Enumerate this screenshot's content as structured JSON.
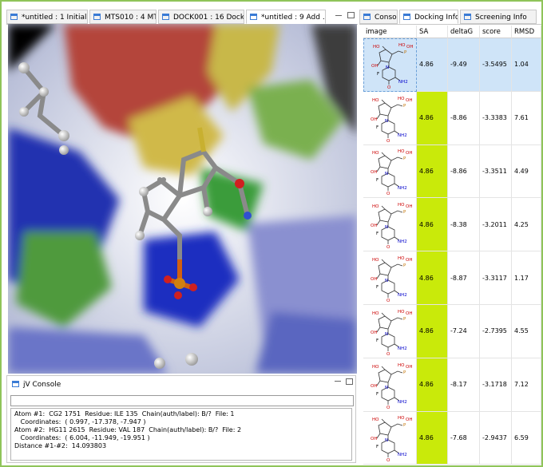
{
  "left_tabs": [
    "*untitled : 1 Initial ...",
    "MTS010 : 4 MTS",
    "DOCK001 : 16 Docking",
    "*untitled : 9 Add ..."
  ],
  "console": {
    "title": "jV Console",
    "lines": [
      "Atom #1:  CG2 1751  Residue: ILE 135  Chain(auth/label): B/?  File: 1",
      "   Coordinates:  ( 0.997, -17.378, -7.947 )",
      "Atom #2:  HG11 2615  Residue: VAL 187  Chain(auth/label): B/?  File: 2",
      "   Coordinates:  ( 6.004, -11.949, -19.951 )",
      "Distance #1-#2:  14.093803"
    ]
  },
  "right_tabs": [
    "Console",
    "Docking Info",
    "Screening Info"
  ],
  "table": {
    "columns": [
      "image",
      "SA",
      "deltaG",
      "score",
      "RMSD"
    ],
    "rows": [
      [
        4.86,
        -9.49,
        -3.5495,
        1.04
      ],
      [
        4.86,
        -8.86,
        -3.3383,
        7.61
      ],
      [
        4.86,
        -8.86,
        -3.3511,
        4.49
      ],
      [
        4.86,
        -8.38,
        -3.2011,
        4.25
      ],
      [
        4.86,
        -8.87,
        -3.3117,
        1.17
      ],
      [
        4.86,
        -7.24,
        -2.7395,
        4.55
      ],
      [
        4.86,
        -8.17,
        -3.1718,
        7.12
      ],
      [
        4.86,
        -7.68,
        -2.9437,
        6.59
      ]
    ]
  },
  "molecule_labels": {
    "ho_top": "HO",
    "p": "P",
    "oh_top": "OH",
    "ho": "HO",
    "oh": "OH",
    "f": "F",
    "n": "N",
    "nh2": "NH2",
    "o": "O"
  }
}
